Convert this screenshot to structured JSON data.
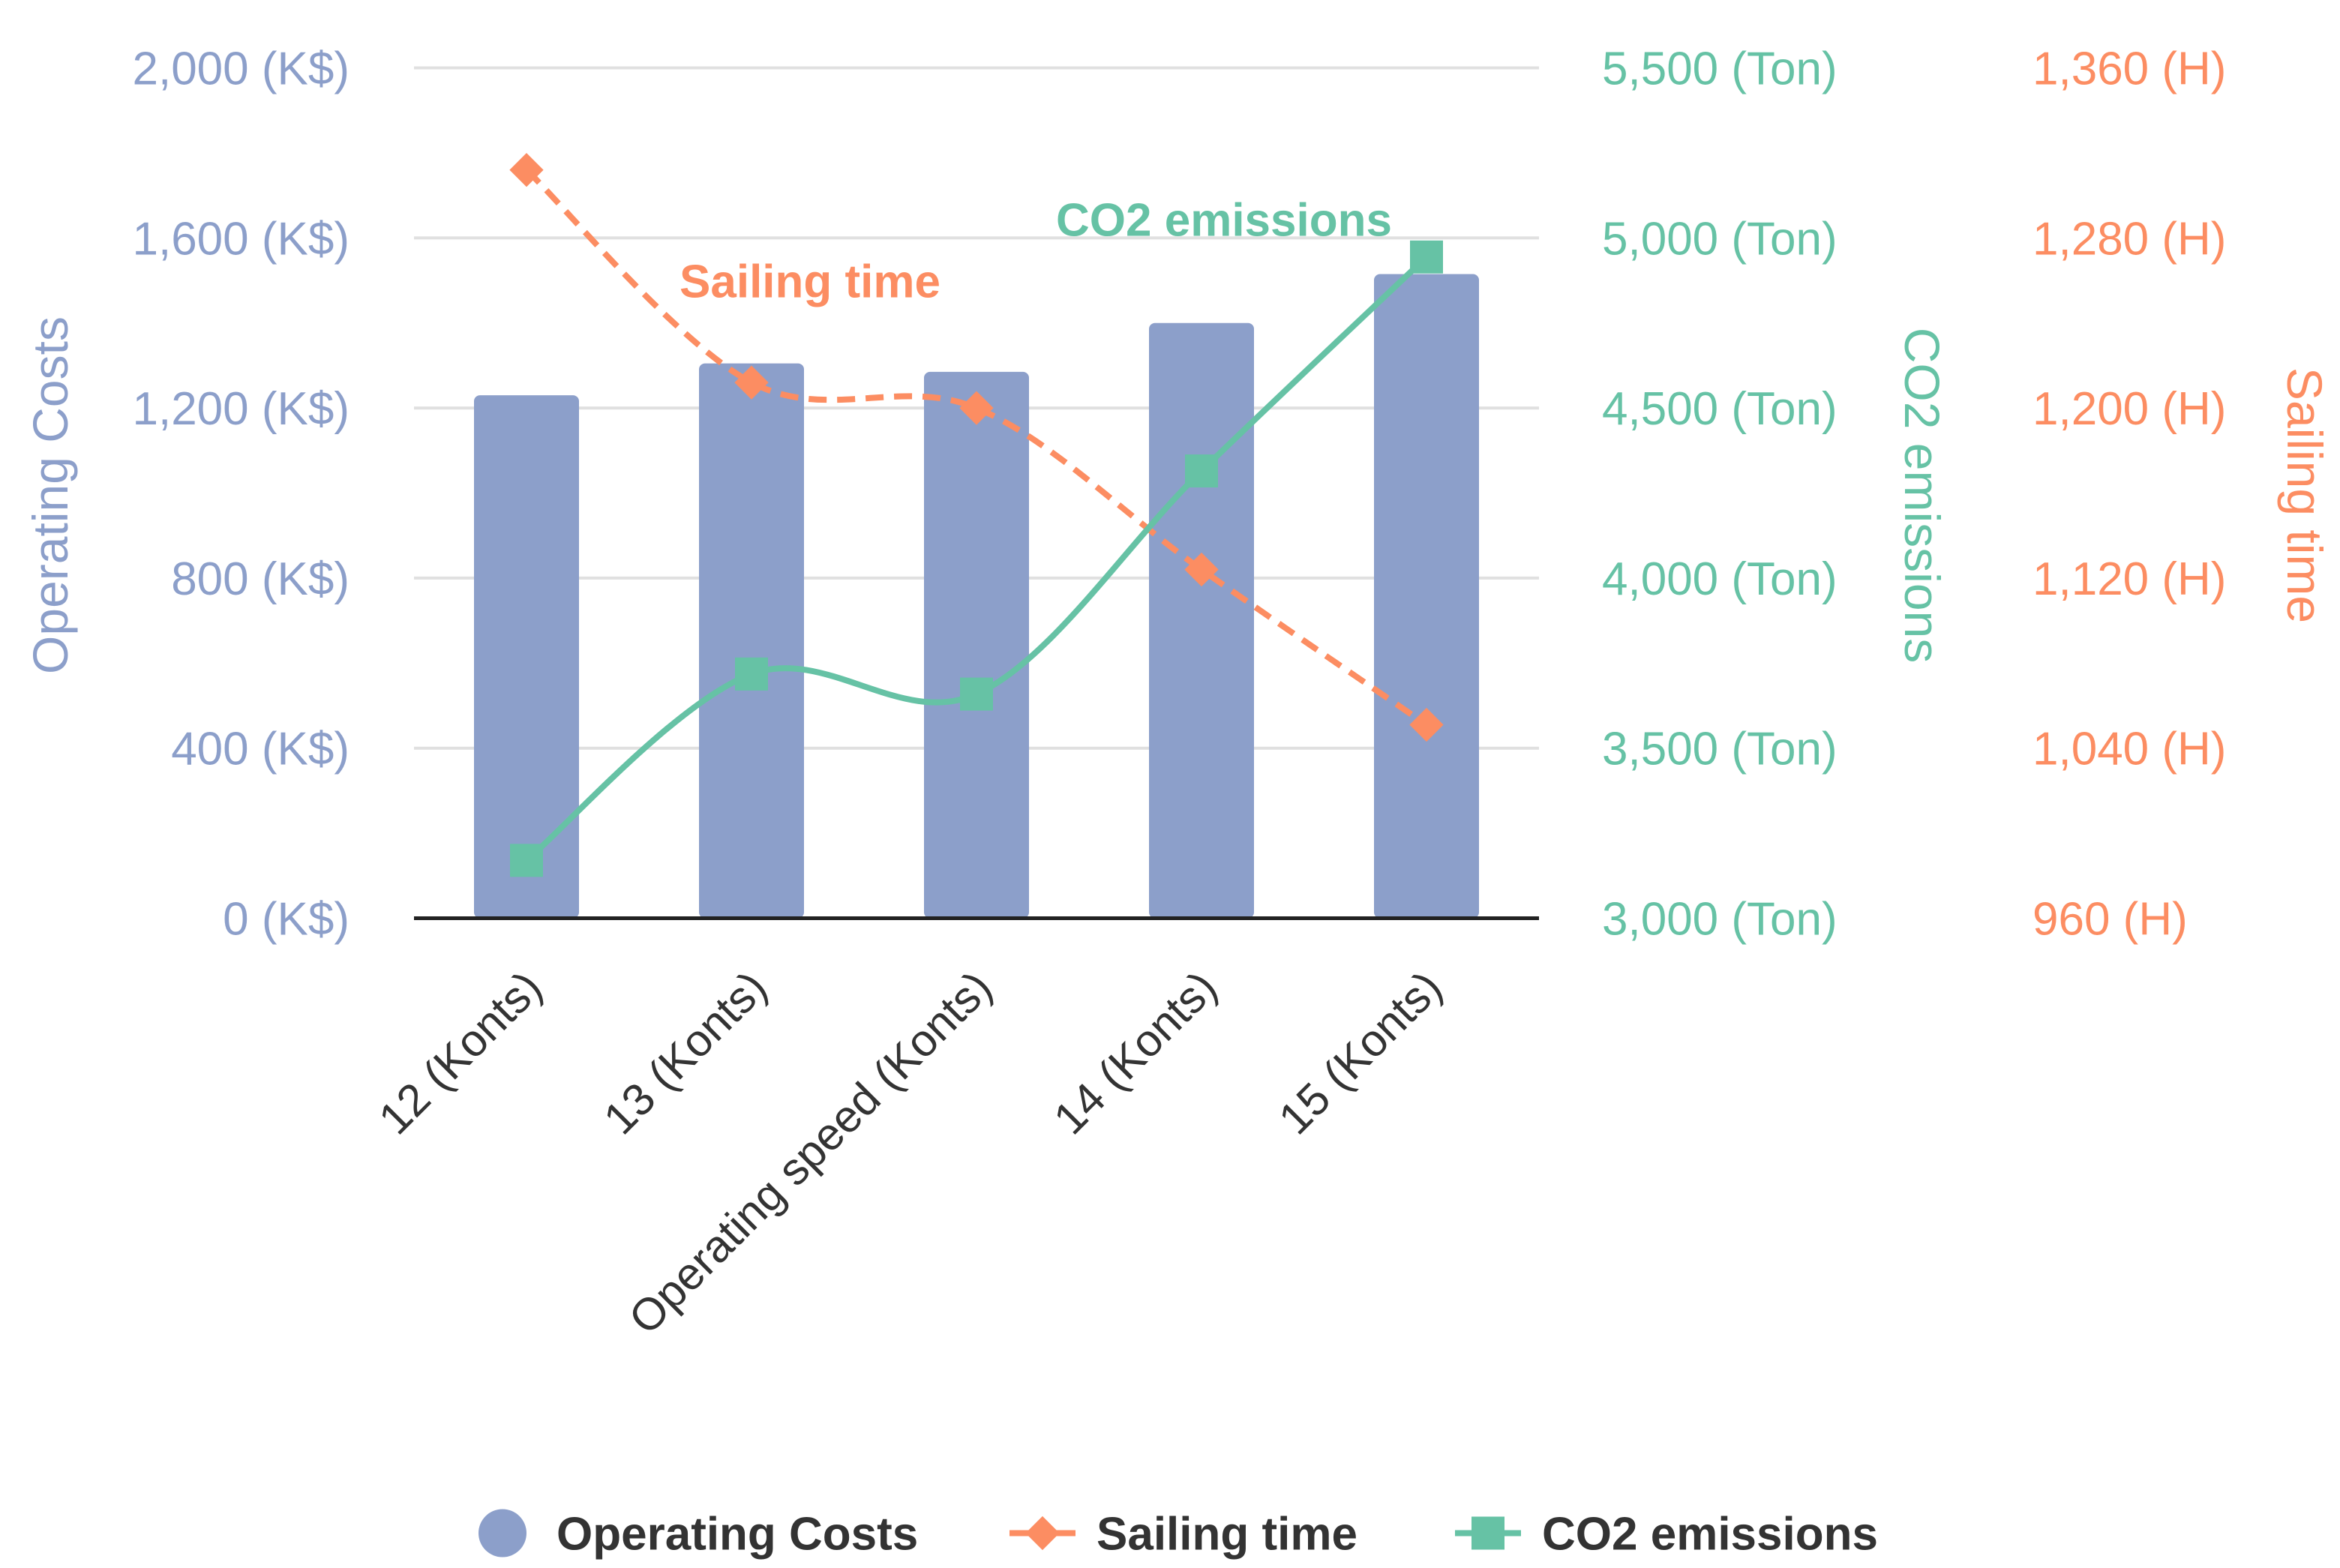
{
  "chart_data": {
    "type": "bar",
    "categories": [
      "12 (Konts)",
      "13 (Konts)",
      "Operating speed (Konts)",
      "14 (Konts)",
      "15 (Konts)"
    ],
    "series": [
      {
        "name": "Operating Costs",
        "type": "bar",
        "axis": "left",
        "color": "#8c9fca",
        "values": [
          1230,
          1305,
          1285,
          1400,
          1515
        ]
      },
      {
        "name": "Sailing time",
        "type": "line",
        "style": "dashed",
        "marker": "diamond",
        "axis": "right2",
        "color": "#fc8d62",
        "values": [
          1312,
          1212,
          1200,
          1124,
          1051
        ]
      },
      {
        "name": "CO2 emissions",
        "type": "line",
        "style": "solid-smooth",
        "marker": "square",
        "axis": "right1",
        "color": "#66c2a5",
        "values": [
          3170,
          3718,
          3659,
          4315,
          4944
        ]
      }
    ],
    "axes": {
      "left": {
        "label": "Operating Costs",
        "range": [
          0,
          2000
        ],
        "ticks": [
          "0 (K$)",
          "400 (K$)",
          "800 (K$)",
          "1,200 (K$)",
          "1,600 (K$)",
          "2,000 (K$)"
        ]
      },
      "right1": {
        "label": "CO2 emissions",
        "range": [
          3000,
          5500
        ],
        "ticks": [
          "3,000 (Ton)",
          "3,500 (Ton)",
          "4,000 (Ton)",
          "4,500 (Ton)",
          "5,000 (Ton)",
          "5,500 (Ton)"
        ]
      },
      "right2": {
        "label": "Sailing time",
        "range": [
          960,
          1360
        ],
        "ticks": [
          "960 (H)",
          "1,040 (H)",
          "1,120 (H)",
          "1,200 (H)",
          "1,280 (H)",
          "1,360 (H)"
        ]
      }
    },
    "annotations": [
      "Sailing time",
      "CO2 emissions"
    ],
    "grid": true,
    "legend": "bottom"
  }
}
